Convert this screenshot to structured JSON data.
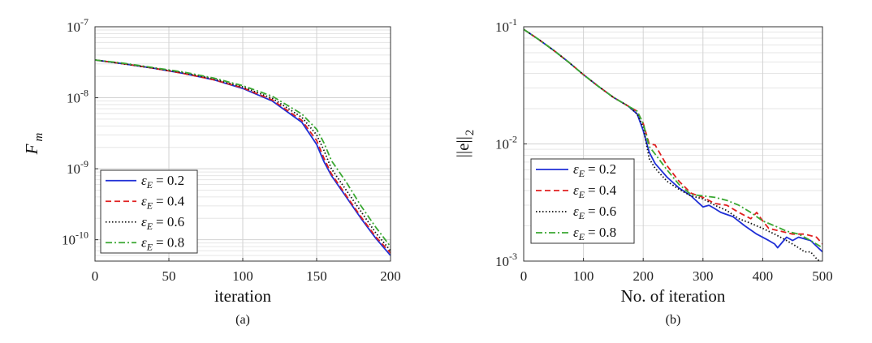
{
  "chart_data": [
    {
      "panel_label": "(a)",
      "type": "line",
      "xlabel": "iteration",
      "ylabel": "F",
      "ylabel_sub": "m",
      "xlim": [
        0,
        200
      ],
      "ylim": [
        5e-11,
        1e-07
      ],
      "y_scale": "log",
      "grid": true,
      "x_ticks": [
        "0",
        "50",
        "100",
        "150",
        "200"
      ],
      "y_ticks": [
        {
          "value": 1e-10,
          "base": "10",
          "exp": "-10"
        },
        {
          "value": 1e-09,
          "base": "10",
          "exp": "-9"
        },
        {
          "value": 1e-08,
          "base": "10",
          "exp": "-8"
        },
        {
          "value": 1e-07,
          "base": "10",
          "exp": "-7"
        }
      ],
      "legend_position": "bottom-left",
      "series": [
        {
          "name": "ε_E = 0.2",
          "color": "#1f2fd6",
          "dash": "solid",
          "x": [
            0,
            20,
            40,
            60,
            80,
            100,
            120,
            140,
            150,
            155,
            160,
            170,
            180,
            190,
            200
          ],
          "y": [
            3.4e-08,
            3e-08,
            2.6e-08,
            2.2e-08,
            1.8e-08,
            1.35e-08,
            9e-09,
            4.5e-09,
            2.2e-09,
            1.25e-09,
            8e-10,
            4e-10,
            2e-10,
            1.05e-10,
            6e-11
          ]
        },
        {
          "name": "ε_E = 0.4",
          "color": "#e02020",
          "dash": "dashed",
          "x": [
            0,
            20,
            40,
            60,
            80,
            100,
            120,
            140,
            150,
            155,
            160,
            170,
            180,
            190,
            200
          ],
          "y": [
            3.4e-08,
            3e-08,
            2.6e-08,
            2.2e-08,
            1.8e-08,
            1.38e-08,
            9.3e-09,
            4.8e-09,
            2.5e-09,
            1.4e-09,
            8.5e-10,
            4.2e-10,
            2.1e-10,
            1.1e-10,
            6.5e-11
          ]
        },
        {
          "name": "ε_E = 0.6",
          "color": "#111111",
          "dash": "dotted",
          "x": [
            0,
            20,
            40,
            60,
            80,
            100,
            120,
            140,
            150,
            155,
            160,
            170,
            180,
            190,
            200
          ],
          "y": [
            3.4e-08,
            3e-08,
            2.6e-08,
            2.25e-08,
            1.85e-08,
            1.42e-08,
            9.8e-09,
            5.3e-09,
            3e-09,
            1.8e-09,
            1e-09,
            5e-10,
            2.5e-10,
            1.25e-10,
            7e-11
          ]
        },
        {
          "name": "ε_E = 0.8",
          "color": "#3aa832",
          "dash": "dashdot",
          "x": [
            0,
            20,
            40,
            60,
            80,
            100,
            120,
            140,
            150,
            155,
            160,
            170,
            180,
            190,
            200
          ],
          "y": [
            3.4e-08,
            3.05e-08,
            2.65e-08,
            2.3e-08,
            1.9e-08,
            1.48e-08,
            1.05e-08,
            5.9e-09,
            3.6e-09,
            2.3e-09,
            1.3e-09,
            6.5e-10,
            3e-10,
            1.5e-10,
            8e-11
          ]
        }
      ]
    },
    {
      "panel_label": "(b)",
      "type": "line",
      "xlabel": "No. of iteration",
      "ylabel": "||e||",
      "ylabel_sub": "2",
      "xlim": [
        0,
        500
      ],
      "ylim": [
        0.001,
        0.1
      ],
      "y_scale": "log",
      "grid": true,
      "x_ticks": [
        "0",
        "100",
        "200",
        "300",
        "400",
        "500"
      ],
      "y_ticks": [
        {
          "value": 0.001,
          "base": "10",
          "exp": "-3"
        },
        {
          "value": 0.01,
          "base": "10",
          "exp": "-2"
        },
        {
          "value": 0.1,
          "base": "10",
          "exp": "-1"
        }
      ],
      "legend_position": "bottom-left",
      "series": [
        {
          "name": "ε_E = 0.2",
          "color": "#1f2fd6",
          "dash": "solid",
          "x": [
            0,
            25,
            50,
            75,
            100,
            125,
            150,
            175,
            190,
            200,
            210,
            220,
            240,
            260,
            280,
            300,
            310,
            320,
            330,
            350,
            370,
            390,
            410,
            420,
            425,
            440,
            450,
            460,
            480,
            500
          ],
          "y": [
            0.095,
            0.078,
            0.063,
            0.05,
            0.039,
            0.031,
            0.025,
            0.021,
            0.018,
            0.013,
            0.0085,
            0.0068,
            0.0052,
            0.0042,
            0.0036,
            0.0029,
            0.003,
            0.0028,
            0.0026,
            0.0024,
            0.002,
            0.0017,
            0.0015,
            0.0014,
            0.0013,
            0.0016,
            0.0015,
            0.0016,
            0.0015,
            0.0012
          ]
        },
        {
          "name": "ε_E = 0.4",
          "color": "#e02020",
          "dash": "dashed",
          "x": [
            0,
            25,
            50,
            75,
            100,
            125,
            150,
            175,
            190,
            200,
            210,
            220,
            240,
            260,
            280,
            300,
            320,
            340,
            360,
            380,
            390,
            400,
            410,
            430,
            450,
            470,
            490,
            500
          ],
          "y": [
            0.095,
            0.078,
            0.063,
            0.05,
            0.039,
            0.031,
            0.025,
            0.021,
            0.019,
            0.015,
            0.01,
            0.0098,
            0.0065,
            0.0048,
            0.0038,
            0.0035,
            0.0031,
            0.003,
            0.0026,
            0.0023,
            0.0026,
            0.0022,
            0.0019,
            0.0018,
            0.0017,
            0.0017,
            0.0016,
            0.0014
          ]
        },
        {
          "name": "ε_E = 0.6",
          "color": "#111111",
          "dash": "dotted",
          "x": [
            0,
            25,
            50,
            75,
            100,
            125,
            150,
            175,
            190,
            200,
            210,
            220,
            240,
            260,
            280,
            300,
            320,
            340,
            360,
            380,
            400,
            420,
            440,
            460,
            470,
            480,
            490,
            500
          ],
          "y": [
            0.095,
            0.078,
            0.063,
            0.05,
            0.039,
            0.031,
            0.025,
            0.021,
            0.018,
            0.014,
            0.0075,
            0.0062,
            0.0048,
            0.0041,
            0.0036,
            0.0034,
            0.003,
            0.0027,
            0.0023,
            0.0021,
            0.0019,
            0.0017,
            0.0015,
            0.0013,
            0.0012,
            0.0012,
            0.00105,
            0.00095
          ]
        },
        {
          "name": "ε_E = 0.8",
          "color": "#3aa832",
          "dash": "dashdot",
          "x": [
            0,
            25,
            50,
            75,
            100,
            125,
            150,
            175,
            190,
            200,
            210,
            220,
            240,
            260,
            280,
            300,
            320,
            340,
            360,
            380,
            400,
            420,
            440,
            460,
            480,
            500
          ],
          "y": [
            0.095,
            0.078,
            0.063,
            0.05,
            0.039,
            0.031,
            0.025,
            0.021,
            0.019,
            0.015,
            0.0095,
            0.0082,
            0.006,
            0.0045,
            0.0037,
            0.0036,
            0.0035,
            0.0033,
            0.003,
            0.0026,
            0.0022,
            0.002,
            0.0018,
            0.0017,
            0.0015,
            0.0013
          ]
        }
      ]
    }
  ]
}
